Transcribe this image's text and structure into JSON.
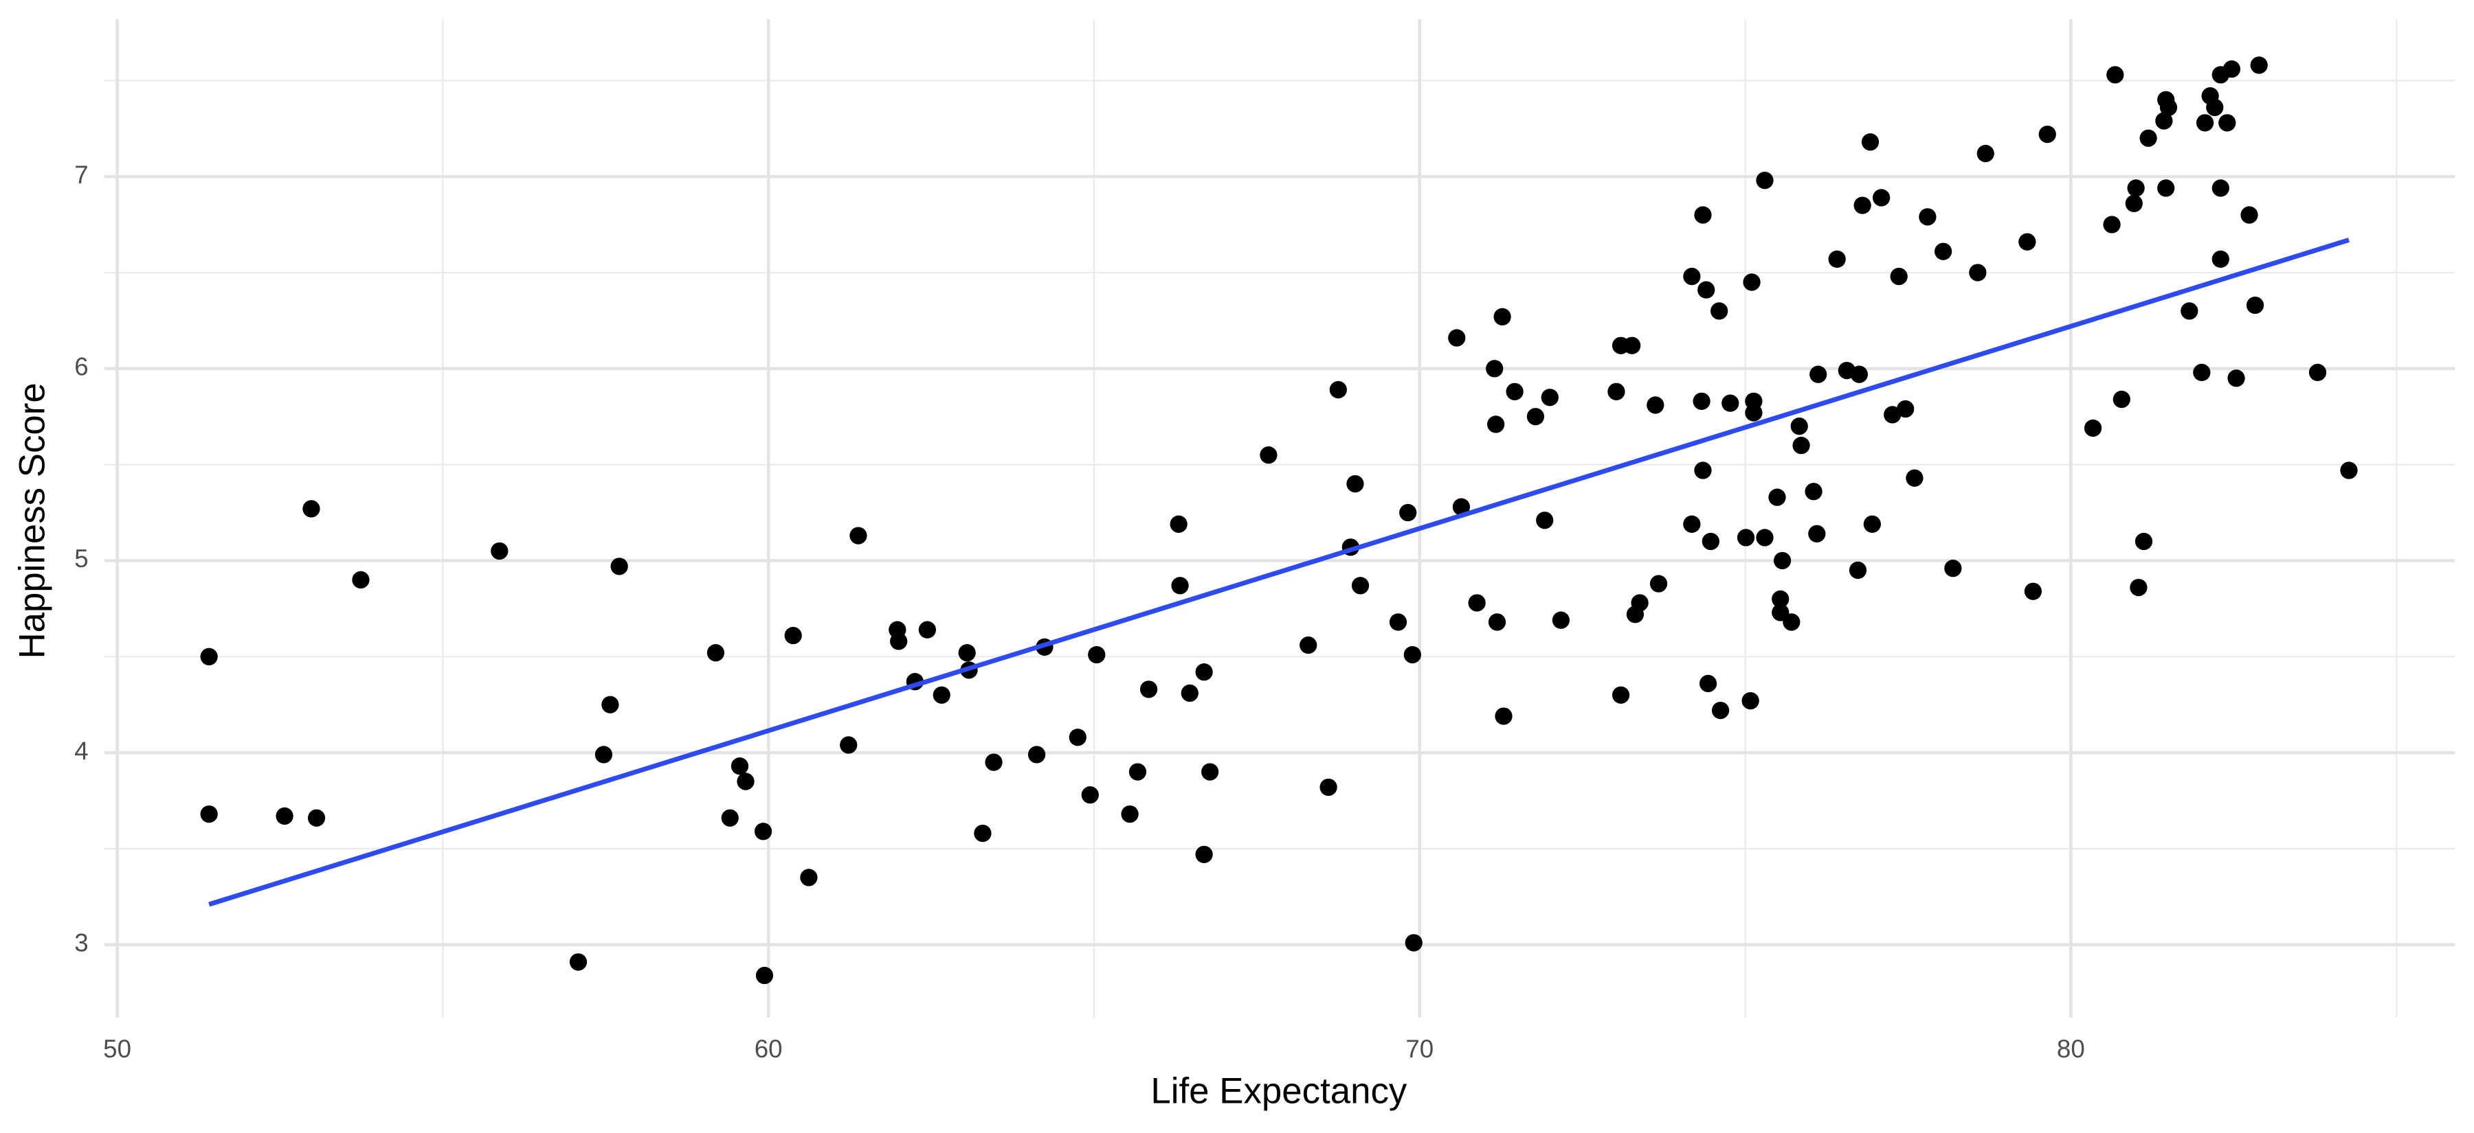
{
  "chart_data": {
    "type": "scatter",
    "x_label": "Life Expectancy",
    "y_label": "Happiness Score",
    "xlim": [
      49.8,
      85.9
    ],
    "ylim": [
      2.62,
      7.82
    ],
    "xticks": [
      50,
      60,
      70,
      80
    ],
    "yticks": [
      3,
      4,
      5,
      6,
      7
    ],
    "x_minor_grid": [
      55,
      65,
      75,
      85
    ],
    "y_minor_grid": [
      3.5,
      4.5,
      5.5,
      6.5,
      7.5
    ],
    "grid": true,
    "color": "#000000",
    "x": [
      51.41,
      51.41,
      52.57,
      53.06,
      52.98,
      53.74,
      55.87,
      57.08,
      57.71,
      57.57,
      57.47,
      59.19,
      59.56,
      59.65,
      59.41,
      59.92,
      59.94,
      60.38,
      60.62,
      61.23,
      61.38,
      61.98,
      62.0,
      62.25,
      62.44,
      62.66,
      63.05,
      63.08,
      63.29,
      63.46,
      64.12,
      64.24,
      64.75,
      64.94,
      65.04,
      65.55,
      65.67,
      65.84,
      66.3,
      66.32,
      66.47,
      66.69,
      66.69,
      66.78,
      67.68,
      68.29,
      68.6,
      68.75,
      68.94,
      69.01,
      69.09,
      69.67,
      69.82,
      69.89,
      69.91,
      70.57,
      70.64,
      70.88,
      71.15,
      71.17,
      71.19,
      71.27,
      71.29,
      71.46,
      71.78,
      71.92,
      72.0,
      72.17,
      73.02,
      73.09,
      73.26,
      73.09,
      73.31,
      73.38,
      73.62,
      73.67,
      74.18,
      74.18,
      74.33,
      74.35,
      74.35,
      74.4,
      74.43,
      74.47,
      74.6,
      74.62,
      74.77,
      75.01,
      75.08,
      75.1,
      75.13,
      75.13,
      75.3,
      75.3,
      75.49,
      75.57,
      75.54,
      75.54,
      75.71,
      75.83,
      75.86,
      76.05,
      76.1,
      76.12,
      76.41,
      76.56,
      76.75,
      76.73,
      76.8,
      76.92,
      76.95,
      77.09,
      77.26,
      77.36,
      77.46,
      77.6,
      77.8,
      78.04,
      78.19,
      78.57,
      78.69,
      79.33,
      79.42,
      79.64,
      80.34,
      80.63,
      80.68,
      80.78,
      80.97,
      81.0,
      81.04,
      81.12,
      81.19,
      81.43,
      81.46,
      81.46,
      81.5,
      81.82,
      82.01,
      82.06,
      82.14,
      82.21,
      82.3,
      82.3,
      82.3,
      82.4,
      82.47,
      82.54,
      82.74,
      82.83,
      82.89,
      83.79,
      84.27
    ],
    "y": [
      4.5,
      3.68,
      3.67,
      3.66,
      5.27,
      4.9,
      5.05,
      2.91,
      4.97,
      4.25,
      3.99,
      4.52,
      3.93,
      3.85,
      3.66,
      3.59,
      2.84,
      4.61,
      3.35,
      4.04,
      5.13,
      4.64,
      4.58,
      4.37,
      4.64,
      4.3,
      4.52,
      4.43,
      3.58,
      3.95,
      3.99,
      4.55,
      4.08,
      3.78,
      4.51,
      3.68,
      3.9,
      4.33,
      5.19,
      4.87,
      4.31,
      4.42,
      3.47,
      3.9,
      5.55,
      4.56,
      3.82,
      5.89,
      5.07,
      5.4,
      4.87,
      4.68,
      5.25,
      4.51,
      3.01,
      6.16,
      5.28,
      4.78,
      6.0,
      5.71,
      4.68,
      6.27,
      4.19,
      5.88,
      5.75,
      5.21,
      5.85,
      4.69,
      5.88,
      6.12,
      6.12,
      4.3,
      4.72,
      4.78,
      5.81,
      4.88,
      6.48,
      5.19,
      5.83,
      5.47,
      6.8,
      6.41,
      4.36,
      5.1,
      6.3,
      4.22,
      5.82,
      5.12,
      4.27,
      6.45,
      5.83,
      5.77,
      5.12,
      6.98,
      5.33,
      5.0,
      4.8,
      4.73,
      4.68,
      5.7,
      5.6,
      5.36,
      5.14,
      5.97,
      6.57,
      5.99,
      5.97,
      4.95,
      6.85,
      7.18,
      5.19,
      6.89,
      5.76,
      6.48,
      5.79,
      5.43,
      6.79,
      6.61,
      4.96,
      6.5,
      7.12,
      6.66,
      4.84,
      7.22,
      5.69,
      6.75,
      7.53,
      5.84,
      6.86,
      6.94,
      4.86,
      5.1,
      7.2,
      7.29,
      6.94,
      7.4,
      7.36,
      6.3,
      5.98,
      7.28,
      7.42,
      7.36,
      7.53,
      6.57,
      6.94,
      7.28,
      7.56,
      5.95,
      6.8,
      6.33,
      7.58,
      5.98,
      5.47
    ],
    "fit": {
      "color": "#2e4bef",
      "x": [
        51.41,
        84.27
      ],
      "y": [
        3.21,
        6.67
      ]
    }
  }
}
